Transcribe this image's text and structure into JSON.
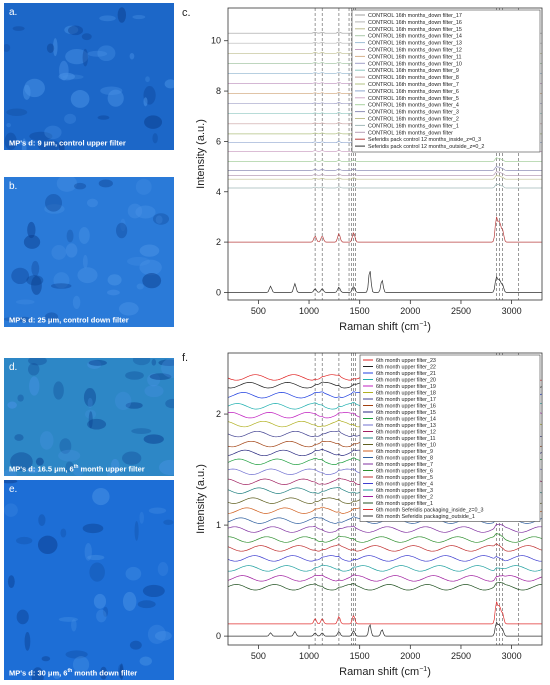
{
  "micrographs": [
    {
      "letter": "a.",
      "caption": "MP's d: 9 μm, control upper filter",
      "sup": "",
      "caption_tail": "",
      "tint": "#1c67c8"
    },
    {
      "letter": "b.",
      "caption": "MP's d: 25 μm, control down filter",
      "sup": "",
      "caption_tail": "",
      "tint": "#2a7ad8"
    },
    {
      "letter": "d.",
      "caption": "MP's d: 16.5 μm, 6",
      "sup": "th",
      "caption_tail": " month upper filter",
      "tint": "#2d87c6"
    },
    {
      "letter": "e.",
      "caption": "MP's d: 30 μm, 6",
      "sup": "th",
      "caption_tail": " month down filter",
      "tint": "#1d6ed6"
    }
  ],
  "chart_data": [
    {
      "panel": "c.",
      "type": "line",
      "xlabel": "Raman shift (cm",
      "xlabel_sup": "−1",
      "xlabel_tail": ")",
      "ylabel": "Intensity (a.u.)",
      "xlim": [
        200,
        3300
      ],
      "ylim": [
        -0.3,
        11.3
      ],
      "xticks": [
        500,
        1000,
        1500,
        2000,
        2500,
        3000
      ],
      "yticks": [
        0,
        2,
        4,
        6,
        8,
        10
      ],
      "reference_lines": [
        1060,
        1130,
        1295,
        1395,
        1420,
        1440,
        1460,
        2850,
        2880,
        2910,
        3070
      ],
      "legend": [
        "CONTROL 16th months_down filter_17",
        "CONTROL 16th months_down filter_16",
        "CONTROL 16th months_down filter_15",
        "CONTROL 16th months_down filter_14",
        "CONTROL 16th months_down filter_13",
        "CONTROL 16th months_down filter_12",
        "CONTROL 16th months_down filter_11",
        "CONTROL 16th months_down filter_10",
        "CONTROL 16th months_down filter_9",
        "CONTROL 16th months_down filter_8",
        "CONTROL 16th months_down filter_7",
        "CONTROL 16th months_down filter_6",
        "CONTROL 16th months_down filter_5",
        "CONTROL 16th months_down filter_4",
        "CONTROL 16th months_down filter_3",
        "CONTROL 16th months_down filter_2",
        "CONTROL 16th months_down filter_1",
        "CONTROL 16th months_down filter",
        "Seferidis pack control 12 months_inside_z=0_3",
        "Seferidis pack control 12 months_outside_z=0_2"
      ],
      "colors": [
        "#9e9e9e",
        "#b4b4b4",
        "#bdbd8e",
        "#a8c8a8",
        "#9fbfd6",
        "#c6a0c6",
        "#d6b08a",
        "#a0a0c8",
        "#8ec8c0",
        "#c8a0a0",
        "#b0c080",
        "#90a8d0",
        "#d0a8c8",
        "#a8d0a0",
        "#9090b8",
        "#c0c090",
        "#a0b8b8",
        "#b8a0b8",
        "#b84040",
        "#303030"
      ],
      "offsets": [
        10.3,
        9.9,
        9.5,
        9.1,
        8.7,
        8.3,
        7.9,
        7.5,
        7.1,
        6.7,
        6.3,
        5.95,
        5.6,
        5.2,
        4.85,
        4.5,
        4.15,
        4.65,
        2.0,
        0.0
      ]
    },
    {
      "panel": "f.",
      "type": "line",
      "xlabel": "Raman shift (cm",
      "xlabel_sup": "−1",
      "xlabel_tail": ")",
      "ylabel": "Intensity (a.u.)",
      "xlim": [
        200,
        3300
      ],
      "ylim": [
        -0.08,
        2.55
      ],
      "xticks": [
        500,
        1000,
        1500,
        2000,
        2500,
        3000
      ],
      "yticks": [
        0,
        1,
        2
      ],
      "reference_lines": [
        1060,
        1130,
        1295,
        1420,
        1440,
        1460,
        2850,
        2880,
        2910,
        3070
      ],
      "legend": [
        "6th month upper filter_23",
        "6th month upper filter_22",
        "6th month upper filter_21",
        "6th month upper filter_20",
        "6th month upper filter_19",
        "6th month upper filter_18",
        "6th month upper filter_17",
        "6th month upper filter_16",
        "6th month upper filter_15",
        "6th month upper filter_14",
        "6th month upper filter_13",
        "6th month upper filter_12",
        "6th month upper filter_11",
        "6th month upper filter_10",
        "6th month upper filter_9",
        "6th month upper filter_8",
        "6th month upper filter_7",
        "6th month upper filter_6",
        "6th month upper filter_5",
        "6th month upper filter_4",
        "6th month upper filter_3",
        "6th month upper filter_2",
        "6th month upper filter_1",
        "6th month Seferidis packaging_inside_z=0_3",
        "6th month Seferidis packaging_outside_1"
      ],
      "colors": [
        "#e02020",
        "#202020",
        "#2040e0",
        "#20b0b0",
        "#c020c0",
        "#b0b020",
        "#404090",
        "#a04010",
        "#2a2a80",
        "#20a040",
        "#7070d0",
        "#a02060",
        "#208080",
        "#606020",
        "#d06020",
        "#3060a0",
        "#8030a0",
        "#309030",
        "#c03030",
        "#4040d0",
        "#20a0a0",
        "#a020a0",
        "#205020",
        "#e03030",
        "#303030"
      ],
      "offsets": [
        2.33,
        2.26,
        2.17,
        2.07,
        1.99,
        1.91,
        1.82,
        1.73,
        1.65,
        1.57,
        1.48,
        1.39,
        1.31,
        1.22,
        1.13,
        1.04,
        0.96,
        0.87,
        0.79,
        0.7,
        0.61,
        0.52,
        0.44,
        0.11,
        0.0
      ]
    }
  ]
}
